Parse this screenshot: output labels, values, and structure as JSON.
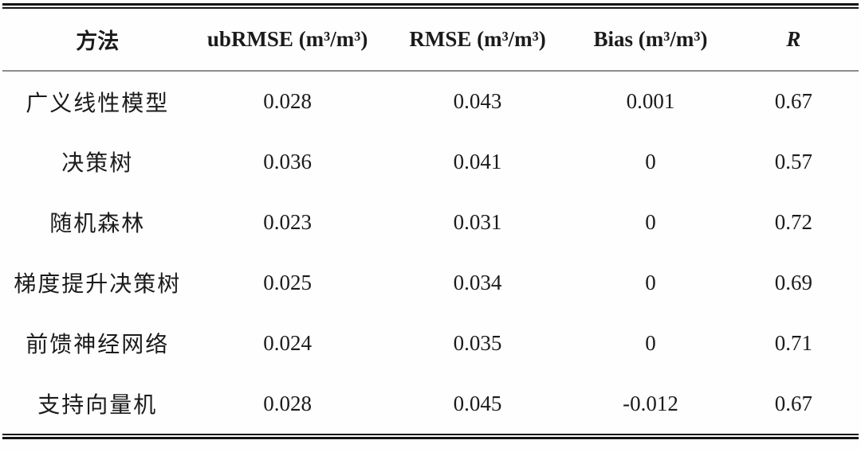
{
  "table": {
    "columns": [
      "方法",
      "ubRMSE (m³/m³)",
      "RMSE (m³/m³)",
      "Bias (m³/m³)",
      "R"
    ],
    "rows": [
      [
        "广义线性模型",
        "0.028",
        "0.043",
        "0.001",
        "0.67"
      ],
      [
        "决策树",
        "0.036",
        "0.041",
        "0",
        "0.57"
      ],
      [
        "随机森林",
        "0.023",
        "0.031",
        "0",
        "0.72"
      ],
      [
        "梯度提升决策树",
        "0.025",
        "0.034",
        "0",
        "0.69"
      ],
      [
        "前馈神经网络",
        "0.024",
        "0.035",
        "0",
        "0.71"
      ],
      [
        "支持向量机",
        "0.028",
        "0.045",
        "-0.012",
        "0.67"
      ]
    ]
  },
  "colors": {
    "text": "#1b1b1b",
    "rule": "#141414",
    "header_separator": "#8e8e8e",
    "background": "#ffffff"
  }
}
